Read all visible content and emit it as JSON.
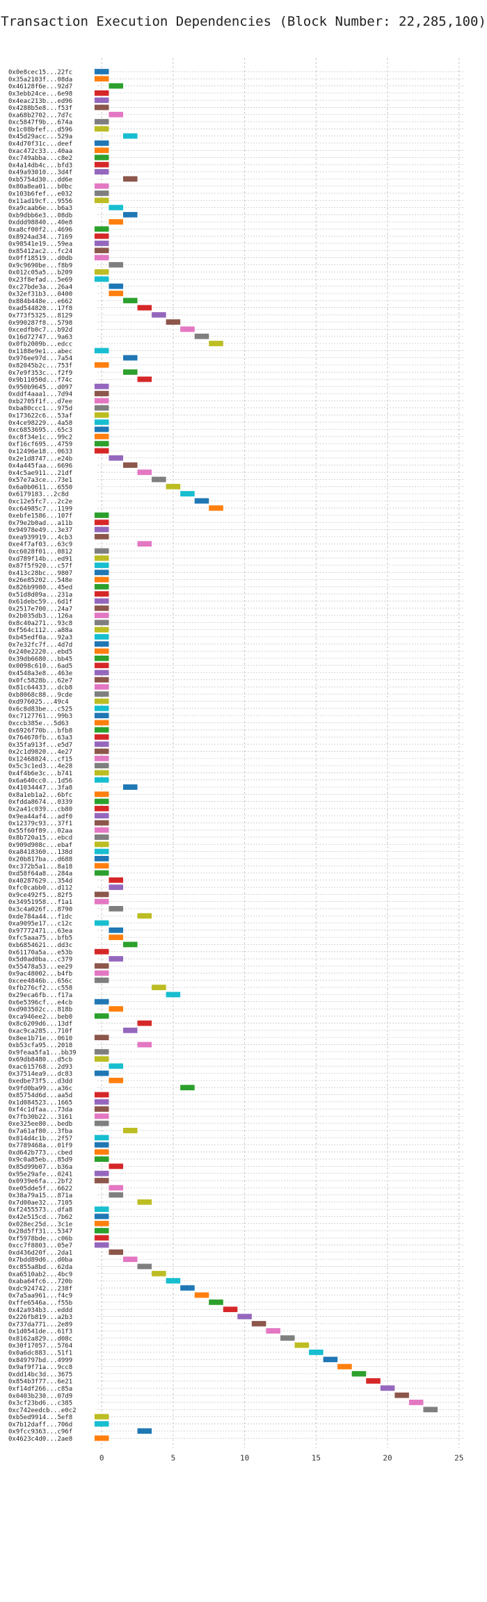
{
  "chart_data": {
    "type": "bar",
    "title": "Transaction Execution Dependencies (Block Number: 22,285,100)",
    "xlabel": "",
    "ylabel": "",
    "xlim": [
      -0.3,
      25.4
    ],
    "x_ticks": [
      0,
      5,
      10,
      15,
      20,
      25
    ],
    "grid": true,
    "colors": [
      "#1f77b4",
      "#ff7f0e",
      "#2ca02c",
      "#d62728",
      "#9467bd",
      "#8c564b",
      "#e377c2",
      "#7f7f7f",
      "#bcbd22",
      "#17becf"
    ],
    "transactions": [
      {
        "id": "0x0e8cec15...22fc",
        "x": 0
      },
      {
        "id": "0x35a2103f...08da",
        "x": 0
      },
      {
        "id": "0x46128f6e...92d7",
        "x": 1
      },
      {
        "id": "0x3ebb24ce...6e98",
        "x": 0
      },
      {
        "id": "0x4eac213b...ed96",
        "x": 0
      },
      {
        "id": "0x4288b5e8...f53f",
        "x": 0
      },
      {
        "id": "0xa68b2702...7d7c",
        "x": 1
      },
      {
        "id": "0xc5847f9b...674a",
        "x": 0
      },
      {
        "id": "0x1c08bfef...d596",
        "x": 0
      },
      {
        "id": "0x45d29acc...529a",
        "x": 2
      },
      {
        "id": "0x4d70f31c...deef",
        "x": 0
      },
      {
        "id": "0xac472c33...40aa",
        "x": 0
      },
      {
        "id": "0xc749abba...c8e2",
        "x": 0
      },
      {
        "id": "0x4a14db4c...bfd3",
        "x": 0
      },
      {
        "id": "0x49a93010...3d4f",
        "x": 0
      },
      {
        "id": "0xb5754d30...dd6e",
        "x": 2
      },
      {
        "id": "0x80a8ea01...b0bc",
        "x": 0
      },
      {
        "id": "0x103b6fef...e032",
        "x": 0
      },
      {
        "id": "0x11ad19cf...9556",
        "x": 0
      },
      {
        "id": "0xa9caab6e...b6a3",
        "x": 1
      },
      {
        "id": "0xb9dbb6e3...08db",
        "x": 2
      },
      {
        "id": "0xddd98840...40e8",
        "x": 1
      },
      {
        "id": "0xa8cf00f2...4696",
        "x": 0
      },
      {
        "id": "0x8924ad34...7169",
        "x": 0
      },
      {
        "id": "0x98541e19...59ea",
        "x": 0
      },
      {
        "id": "0x85412ac2...fc24",
        "x": 0
      },
      {
        "id": "0x0ff18519...d0db",
        "x": 0
      },
      {
        "id": "0x9c9690be...f8b9",
        "x": 1
      },
      {
        "id": "0x012c05a5...b209",
        "x": 0
      },
      {
        "id": "0x23f8efad...5e69",
        "x": 0
      },
      {
        "id": "0xc27bde3a...26a4",
        "x": 1
      },
      {
        "id": "0x32ef31b3...0400",
        "x": 1
      },
      {
        "id": "0x884b448e...e662",
        "x": 2
      },
      {
        "id": "0xad544820...17f8",
        "x": 3
      },
      {
        "id": "0x773f5325...8129",
        "x": 4
      },
      {
        "id": "0x990287f8...5798",
        "x": 5
      },
      {
        "id": "0xcedfb0c7...b92d",
        "x": 6
      },
      {
        "id": "0x16d72747...9a63",
        "x": 7
      },
      {
        "id": "0x0fb2009b...edcc",
        "x": 8
      },
      {
        "id": "0x1188e9e1...abec",
        "x": 0
      },
      {
        "id": "0x976ee97d...7a54",
        "x": 2
      },
      {
        "id": "0x82045b2c...753f",
        "x": 0
      },
      {
        "id": "0x7e9f353c...f2f9",
        "x": 2
      },
      {
        "id": "0x9b11050d...f74c",
        "x": 3
      },
      {
        "id": "0x950b9645...d097",
        "x": 0
      },
      {
        "id": "0xddf4aaa1...7d94",
        "x": 0
      },
      {
        "id": "0xb2705f1f...d7ee",
        "x": 0
      },
      {
        "id": "0xba80ccc1...975d",
        "x": 0
      },
      {
        "id": "0x173622c6...53af",
        "x": 0
      },
      {
        "id": "0x4ce98229...4a58",
        "x": 0
      },
      {
        "id": "0xc6853695...65c3",
        "x": 0
      },
      {
        "id": "0xc8f34e1c...99c2",
        "x": 0
      },
      {
        "id": "0xf16cf695...4759",
        "x": 0
      },
      {
        "id": "0x12496e18...0633",
        "x": 0
      },
      {
        "id": "0x2e1d8747...e24b",
        "x": 1
      },
      {
        "id": "0x4a445faa...6696",
        "x": 2
      },
      {
        "id": "0x4c5ae911...21df",
        "x": 3
      },
      {
        "id": "0x57e7a3ce...73e1",
        "x": 4
      },
      {
        "id": "0x6a0b0611...6550",
        "x": 5
      },
      {
        "id": "0x6179183...2c8d",
        "x": 6
      },
      {
        "id": "0xc12e5fc7...2c2e",
        "x": 7
      },
      {
        "id": "0xc64985c7...1199",
        "x": 8
      },
      {
        "id": "0xebfe1586...107f",
        "x": 0
      },
      {
        "id": "0x79e2b0ad...a11b",
        "x": 0
      },
      {
        "id": "0x94978e49...3e37",
        "x": 0
      },
      {
        "id": "0xea939919...4cb3",
        "x": 0
      },
      {
        "id": "0xe4f7af03...63c9",
        "x": 3
      },
      {
        "id": "0xc6028f01...0812",
        "x": 0
      },
      {
        "id": "0xd789f14b...ed91",
        "x": 0
      },
      {
        "id": "0x87f5f920...c57f",
        "x": 0
      },
      {
        "id": "0x413c28bc...9807",
        "x": 0
      },
      {
        "id": "0x26e85202...548e",
        "x": 0
      },
      {
        "id": "0x826b9980...45ed",
        "x": 0
      },
      {
        "id": "0x51d8d09a...231a",
        "x": 0
      },
      {
        "id": "0x61debc59...6d1f",
        "x": 0
      },
      {
        "id": "0x2517e700...24a7",
        "x": 0
      },
      {
        "id": "0x2b035db3...126a",
        "x": 0
      },
      {
        "id": "0x8c40a271...93c8",
        "x": 0
      },
      {
        "id": "0xf564c112...a88a",
        "x": 0
      },
      {
        "id": "0xb45edf0a...92a3",
        "x": 0
      },
      {
        "id": "0x7e32fc7f...4d7d",
        "x": 0
      },
      {
        "id": "0x240e2220...ebd5",
        "x": 0
      },
      {
        "id": "0x39db6680...bb45",
        "x": 0
      },
      {
        "id": "0x0098c610...6ad5",
        "x": 0
      },
      {
        "id": "0x4548a3e8...463e",
        "x": 0
      },
      {
        "id": "0x0fc5828b...62e7",
        "x": 0
      },
      {
        "id": "0x81c64433...dcb8",
        "x": 0
      },
      {
        "id": "0xb8068c88...9cde",
        "x": 0
      },
      {
        "id": "0xd976025...49c4",
        "x": 0
      },
      {
        "id": "0x6c8d83be...c525",
        "x": 0
      },
      {
        "id": "0xc7127761...99b3",
        "x": 0
      },
      {
        "id": "0xccb385e...5d63",
        "x": 0
      },
      {
        "id": "0x6926f70b...bfb8",
        "x": 0
      },
      {
        "id": "0x764670fb...63a3",
        "x": 0
      },
      {
        "id": "0x35fa913f...e5d7",
        "x": 0
      },
      {
        "id": "0x2c1d9820...4e27",
        "x": 0
      },
      {
        "id": "0x12468824...cf15",
        "x": 0
      },
      {
        "id": "0x5c3c1ed3...4e28",
        "x": 0
      },
      {
        "id": "0x4f4b6e3c...b741",
        "x": 0
      },
      {
        "id": "0x6a640cc0...1d56",
        "x": 0
      },
      {
        "id": "0x41034447...3fa8",
        "x": 2
      },
      {
        "id": "0x8a1eb1a2...6bfc",
        "x": 0
      },
      {
        "id": "0xfdda8674...0339",
        "x": 0
      },
      {
        "id": "0x2a41c039...cb80",
        "x": 0
      },
      {
        "id": "0x9ea44af4...adf0",
        "x": 0
      },
      {
        "id": "0x12379c93...37f1",
        "x": 0
      },
      {
        "id": "0x55f60f89...02aa",
        "x": 0
      },
      {
        "id": "0x8b720a15...ebcd",
        "x": 0
      },
      {
        "id": "0x909d908c...ebaf",
        "x": 0
      },
      {
        "id": "0xa8418360...138d",
        "x": 0
      },
      {
        "id": "0x20b817ba...d688",
        "x": 0
      },
      {
        "id": "0xc372b5a1...8a18",
        "x": 0
      },
      {
        "id": "0xd58f64a8...284a",
        "x": 0
      },
      {
        "id": "0x40287629...354d",
        "x": 1
      },
      {
        "id": "0xfc0cabb0...d112",
        "x": 1
      },
      {
        "id": "0x9ce492f5...82f5",
        "x": 0
      },
      {
        "id": "0x34951958...f1a1",
        "x": 0
      },
      {
        "id": "0x3c4a026f...8790",
        "x": 1
      },
      {
        "id": "0xde784a44...f1dc",
        "x": 3
      },
      {
        "id": "0xa9095e17...c12c",
        "x": 0
      },
      {
        "id": "0x97772471...63ea",
        "x": 1
      },
      {
        "id": "0xfc5aaa75...bfb5",
        "x": 1
      },
      {
        "id": "0xb6854621...dd3c",
        "x": 2
      },
      {
        "id": "0x61170a5a...e53b",
        "x": 0
      },
      {
        "id": "0x5d0ad0ba...c379",
        "x": 1
      },
      {
        "id": "0x55478a53...ee29",
        "x": 0
      },
      {
        "id": "0x9ac48002...b4fb",
        "x": 0
      },
      {
        "id": "0xcee4846b...656c",
        "x": 0
      },
      {
        "id": "0xfb276cf2...c558",
        "x": 4
      },
      {
        "id": "0x29eca6fb...f17a",
        "x": 5
      },
      {
        "id": "0x6e5396cf...e4cb",
        "x": 0
      },
      {
        "id": "0xd903502c...818b",
        "x": 1
      },
      {
        "id": "0xca946ee2...beb0",
        "x": 0
      },
      {
        "id": "0x8c6209d6...13df",
        "x": 3
      },
      {
        "id": "0xac9ca285...710f",
        "x": 2
      },
      {
        "id": "0x8ee1b71e...0610",
        "x": 0
      },
      {
        "id": "0xb53cfa95...2018",
        "x": 3
      },
      {
        "id": "0x9feaa5fa1...bb39",
        "x": 0
      },
      {
        "id": "0x69db8480...d5cb",
        "x": 0
      },
      {
        "id": "0xac615768...2d93",
        "x": 1
      },
      {
        "id": "0x37514ea9...dc83",
        "x": 0
      },
      {
        "id": "0xedbe73f5...d3dd",
        "x": 1
      },
      {
        "id": "0x9fd0ba99...a36c",
        "x": 6
      },
      {
        "id": "0x85754d6d...aa5d",
        "x": 0
      },
      {
        "id": "0x1d084523...1665",
        "x": 0
      },
      {
        "id": "0xf4c1dfaa...73da",
        "x": 0
      },
      {
        "id": "0x7fb30b22...3161",
        "x": 0
      },
      {
        "id": "0xe325ee80...bedb",
        "x": 0
      },
      {
        "id": "0x7a61af80...3fba",
        "x": 2
      },
      {
        "id": "0x814d4c1b...2f57",
        "x": 0
      },
      {
        "id": "0x7789468a...01f9",
        "x": 0
      },
      {
        "id": "0xd642b773...cbed",
        "x": 0
      },
      {
        "id": "0x9c0a85eb...85d9",
        "x": 0
      },
      {
        "id": "0x85d99b07...b36a",
        "x": 1
      },
      {
        "id": "0x95e29afe...0241",
        "x": 0
      },
      {
        "id": "0x0939e6fa...2bf2",
        "x": 0
      },
      {
        "id": "0xe05dde5f...6622",
        "x": 1
      },
      {
        "id": "0x38a79a15...871a",
        "x": 1
      },
      {
        "id": "0x7d00ae32...7105",
        "x": 3
      },
      {
        "id": "0xf2455573...dfa8",
        "x": 0
      },
      {
        "id": "0x42e515cd...7b62",
        "x": 0
      },
      {
        "id": "0x028ec25d...3c1e",
        "x": 0
      },
      {
        "id": "0x28d5ff31...5347",
        "x": 0
      },
      {
        "id": "0xf5978bde...c06b",
        "x": 0
      },
      {
        "id": "0xcc7f8803...05e7",
        "x": 0
      },
      {
        "id": "0xd436d20f...2da1",
        "x": 1
      },
      {
        "id": "0x7bdd89d6...d0ba",
        "x": 2
      },
      {
        "id": "0xc855a8bd...62da",
        "x": 3
      },
      {
        "id": "0xa6510ab2...4bc9",
        "x": 4
      },
      {
        "id": "0xaba64fc6...720b",
        "x": 5
      },
      {
        "id": "0xdc924742...238f",
        "x": 6
      },
      {
        "id": "0x7a5aa961...f4c9",
        "x": 7
      },
      {
        "id": "0xffe6546a...f55b",
        "x": 8
      },
      {
        "id": "0x42a934b3...eddd",
        "x": 9
      },
      {
        "id": "0x226fb819...a2b3",
        "x": 10
      },
      {
        "id": "0x737da771...2e89",
        "x": 11
      },
      {
        "id": "0x1d0541de...61f3",
        "x": 12
      },
      {
        "id": "0x8162a829...d08c",
        "x": 13
      },
      {
        "id": "0x30f17057...5764",
        "x": 14
      },
      {
        "id": "0x0a6dc883...51f1",
        "x": 15
      },
      {
        "id": "0x849797bd...4999",
        "x": 16
      },
      {
        "id": "0x9af9f71a...9cc8",
        "x": 17
      },
      {
        "id": "0xdd14bc3d...3675",
        "x": 18
      },
      {
        "id": "0x854b3f77...6e21",
        "x": 19
      },
      {
        "id": "0xf14df266...c85a",
        "x": 20
      },
      {
        "id": "0x0403b230...07d9",
        "x": 21
      },
      {
        "id": "0x3cf23bd6...c385",
        "x": 22
      },
      {
        "id": "0xc742eedcb...e0c2",
        "x": 23
      },
      {
        "id": "0xb5ed9914...5ef8",
        "x": 0
      },
      {
        "id": "0x7b12daff...706d",
        "x": 0
      },
      {
        "id": "0x9fcc9363...c96f",
        "x": 3
      },
      {
        "id": "0x4623c4d0...2ae8",
        "x": 0
      }
    ]
  }
}
